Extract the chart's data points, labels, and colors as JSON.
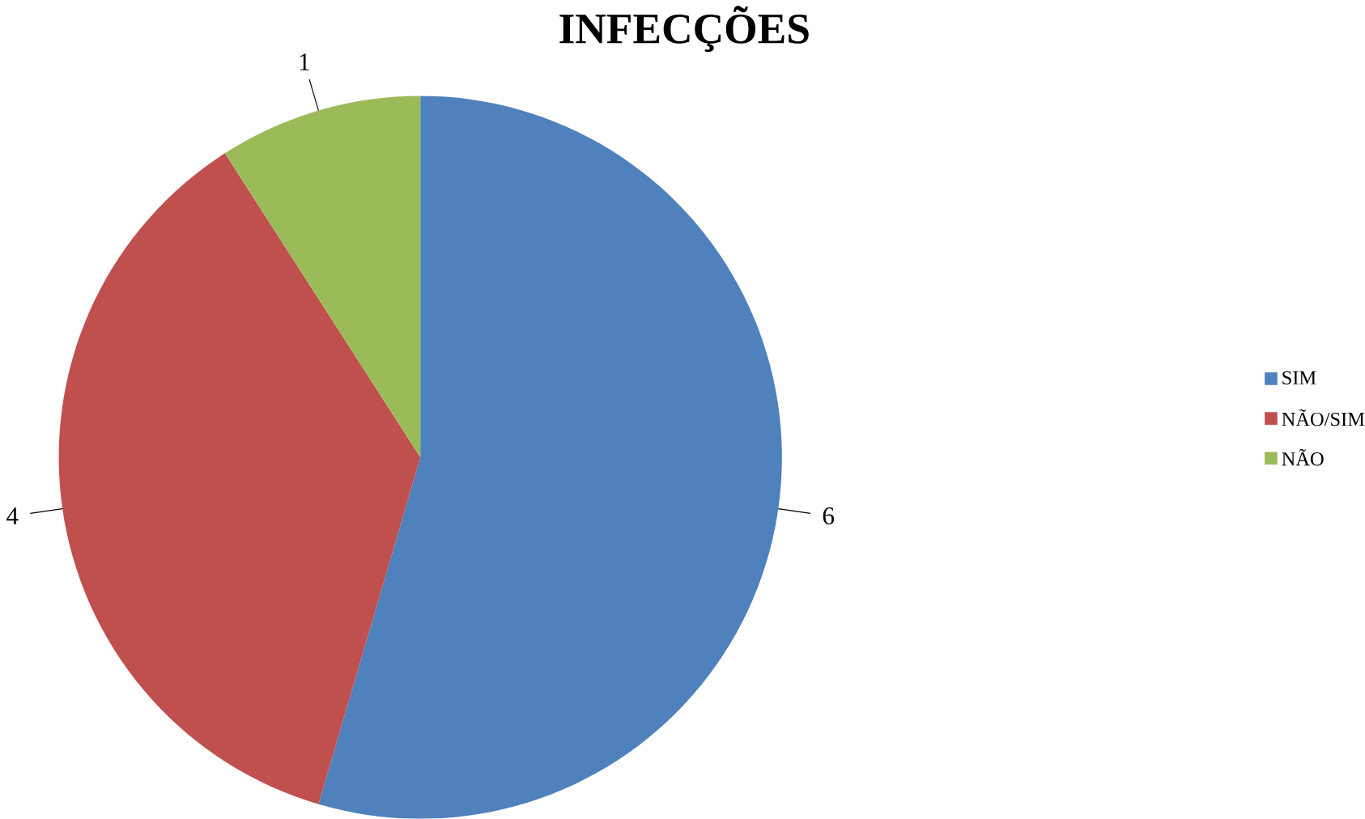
{
  "chart_data": {
    "type": "pie",
    "title": "INFECÇÕES",
    "categories": [
      "SIM",
      "NÃO/SIM",
      "NÃO"
    ],
    "values": [
      6,
      4,
      1
    ],
    "colors": [
      "#4f81bd",
      "#c0504d",
      "#9bbb59"
    ],
    "data_labels": true,
    "legend": "right"
  }
}
